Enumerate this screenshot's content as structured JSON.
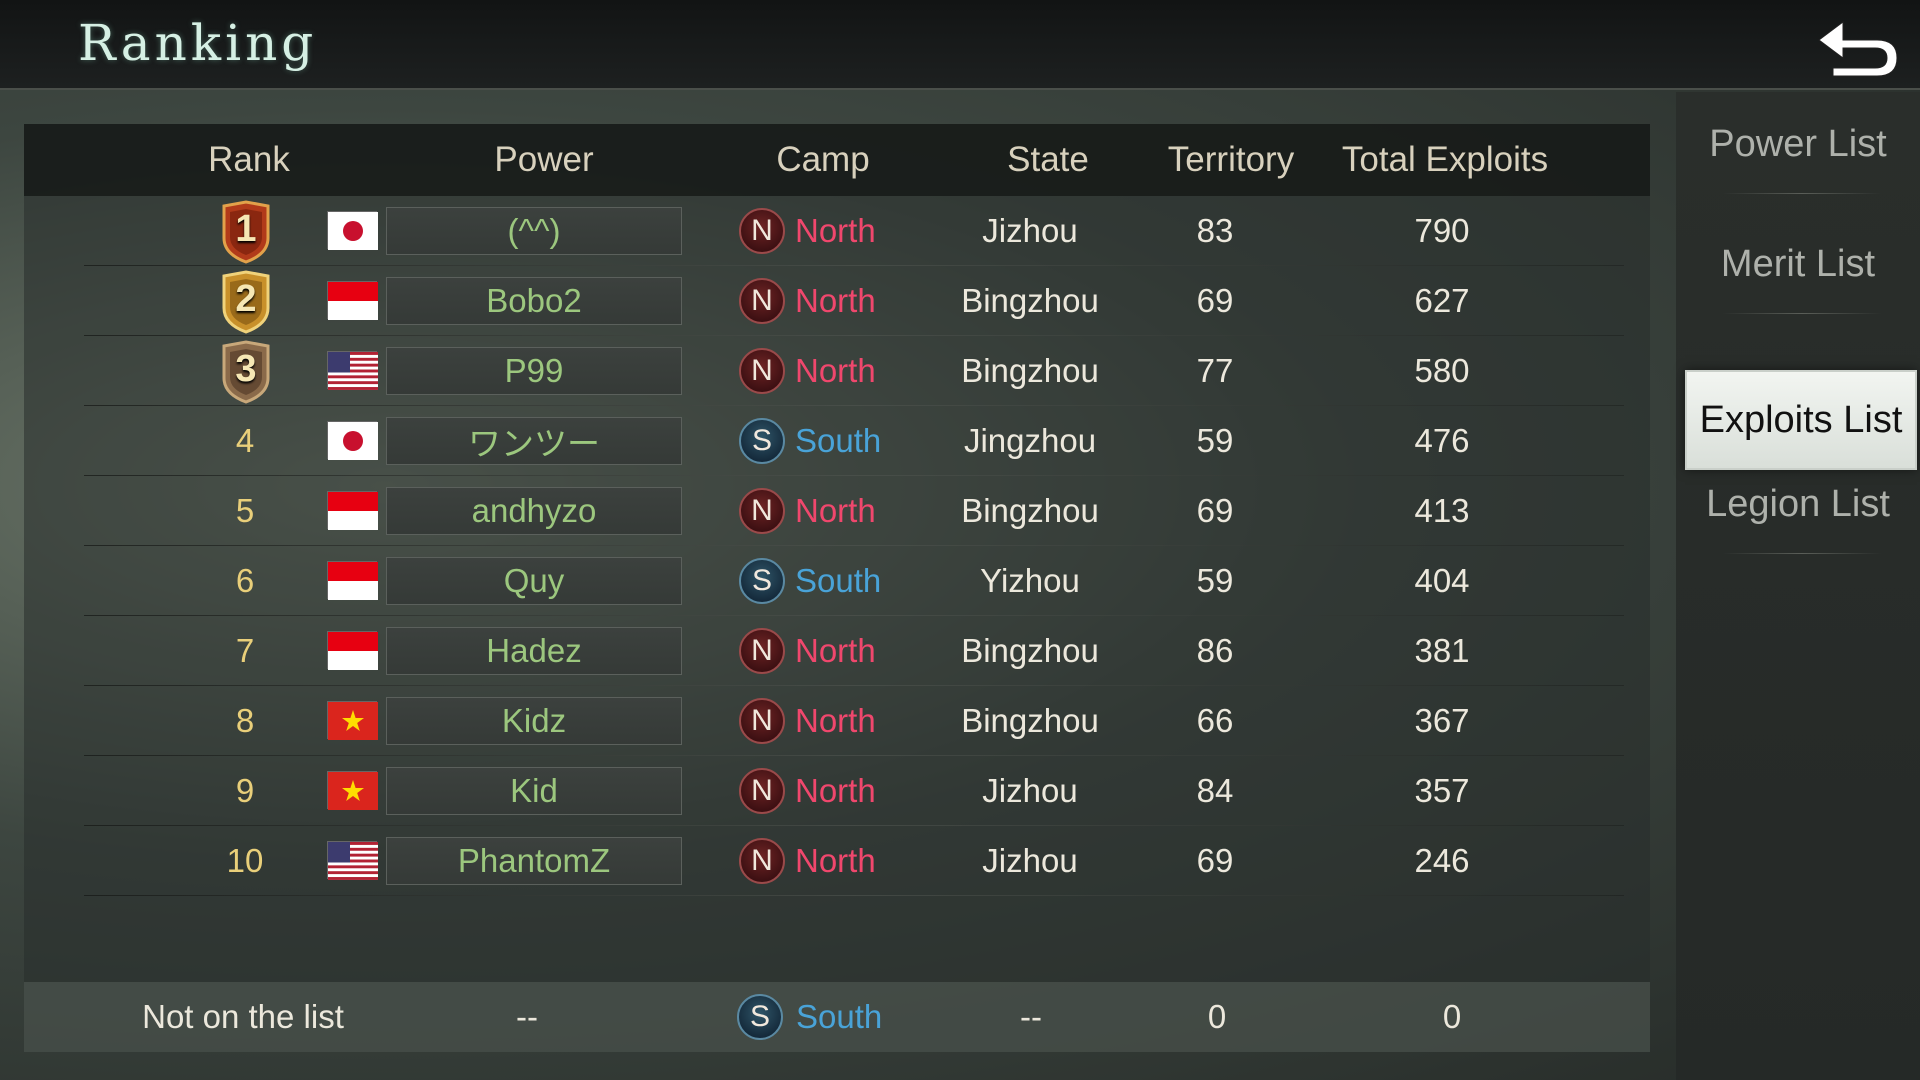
{
  "header": {
    "title": "Ranking"
  },
  "sidebar": {
    "items": [
      {
        "label": "Power List",
        "active": false
      },
      {
        "label": "Merit List",
        "active": false
      },
      {
        "label": "Exploits List",
        "active": true
      },
      {
        "label": "Legion List",
        "active": false
      }
    ]
  },
  "table": {
    "headers": [
      "Rank",
      "Power",
      "Camp",
      "State",
      "Territory",
      "Total Exploits"
    ],
    "rows": [
      {
        "rank": "1",
        "flag": "japan",
        "name": "(^^)",
        "camp": "North",
        "camp_letter": "N",
        "state": "Jizhou",
        "territory": "83",
        "exploits": "790"
      },
      {
        "rank": "2",
        "flag": "indonesia",
        "name": "Bobo2",
        "camp": "North",
        "camp_letter": "N",
        "state": "Bingzhou",
        "territory": "69",
        "exploits": "627"
      },
      {
        "rank": "3",
        "flag": "usa",
        "name": "P99",
        "camp": "North",
        "camp_letter": "N",
        "state": "Bingzhou",
        "territory": "77",
        "exploits": "580"
      },
      {
        "rank": "4",
        "flag": "japan",
        "name": "ワンツー",
        "camp": "South",
        "camp_letter": "S",
        "state": "Jingzhou",
        "territory": "59",
        "exploits": "476"
      },
      {
        "rank": "5",
        "flag": "indonesia",
        "name": "andhyzo",
        "camp": "North",
        "camp_letter": "N",
        "state": "Bingzhou",
        "territory": "69",
        "exploits": "413"
      },
      {
        "rank": "6",
        "flag": "indonesia",
        "name": "Quy",
        "camp": "South",
        "camp_letter": "S",
        "state": "Yizhou",
        "territory": "59",
        "exploits": "404"
      },
      {
        "rank": "7",
        "flag": "indonesia",
        "name": "Hadez",
        "camp": "North",
        "camp_letter": "N",
        "state": "Bingzhou",
        "territory": "86",
        "exploits": "381"
      },
      {
        "rank": "8",
        "flag": "vietnam",
        "name": "Kidz",
        "camp": "North",
        "camp_letter": "N",
        "state": "Bingzhou",
        "territory": "66",
        "exploits": "367"
      },
      {
        "rank": "9",
        "flag": "vietnam",
        "name": "Kid",
        "camp": "North",
        "camp_letter": "N",
        "state": "Jizhou",
        "territory": "84",
        "exploits": "357"
      },
      {
        "rank": "10",
        "flag": "usa",
        "name": "PhantomZ",
        "camp": "North",
        "camp_letter": "N",
        "state": "Jizhou",
        "territory": "69",
        "exploits": "246"
      }
    ]
  },
  "footer": {
    "rank": "Not on the list",
    "power": "--",
    "camp": "South",
    "camp_letter": "S",
    "state": "--",
    "territory": "0",
    "exploits": "0"
  },
  "icons": {
    "back": "back-arrow-icon",
    "medals": [
      "gold-medal-icon",
      "silver-medal-icon",
      "bronze-medal-icon"
    ]
  },
  "colors": {
    "north": "#f0476d",
    "south": "#49a3d8",
    "name": "#9cc77e",
    "rank": "#e9cf7a"
  }
}
